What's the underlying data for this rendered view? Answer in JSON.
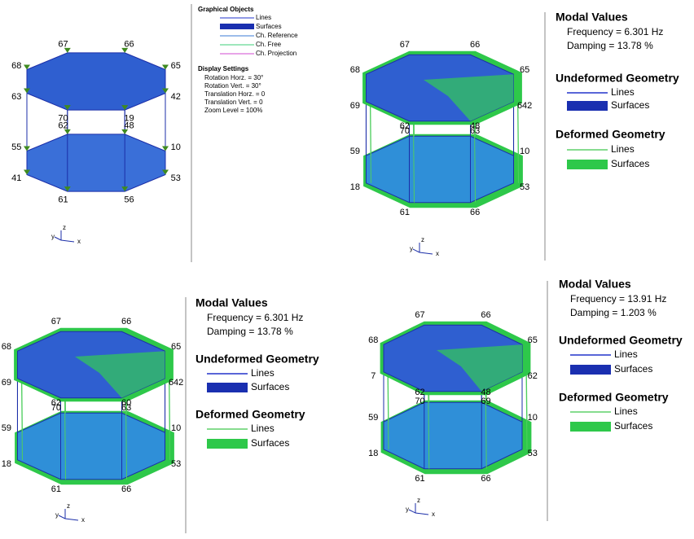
{
  "panels": [
    {
      "legend": {
        "title": "Graphical Objects",
        "items": [
          "Lines",
          "Surfaces",
          "Ch. Reference",
          "Ch. Free",
          "Ch. Projection"
        ]
      },
      "settings": {
        "title": "Display Settings",
        "items": [
          "Rotation Horz. = 30°",
          "Rotation Vert. = 30°",
          "Translation Horz. = 0",
          "Translation Vert. = 0",
          "Zoom Level = 100%"
        ]
      },
      "nodes": {
        "top": [
          "67",
          "66",
          "65",
          "42",
          "19",
          "70",
          "63",
          "68"
        ],
        "bottom": [
          "62",
          "48",
          "10",
          "53",
          "56",
          "61",
          "41",
          "55"
        ]
      },
      "axes": [
        "y",
        "z",
        "x"
      ]
    },
    {
      "modal_values": {
        "title": "Modal Values",
        "frequency": "Frequency = 6.301 Hz",
        "damping": "Damping = 13.78 %"
      },
      "undeformed": {
        "title": "Undeformed Geometry",
        "lines": "Lines",
        "surfaces": "Surfaces"
      },
      "deformed": {
        "title": "Deformed Geometry",
        "lines": "Lines",
        "surfaces": "Surfaces"
      },
      "nodes": {
        "top": [
          "67",
          "66",
          "65",
          "642",
          "63",
          "70",
          "69",
          "68"
        ],
        "bottom": [
          "62",
          "48",
          "10",
          "53",
          "66",
          "61",
          "18",
          "59"
        ]
      },
      "axes": [
        "y",
        "z",
        "x"
      ]
    },
    {
      "modal_values": {
        "title": "Modal Values",
        "frequency": "Frequency = 6.301 Hz",
        "damping": "Damping = 13.78 %"
      },
      "undeformed": {
        "title": "Undeformed Geometry",
        "lines": "Lines",
        "surfaces": "Surfaces"
      },
      "deformed": {
        "title": "Deformed Geometry",
        "lines": "Lines",
        "surfaces": "Surfaces"
      },
      "nodes": {
        "top": [
          "67",
          "66",
          "65",
          "642",
          "63",
          "70",
          "69",
          "68"
        ],
        "bottom": [
          "62",
          "60",
          "10",
          "53",
          "66",
          "61",
          "18",
          "59"
        ]
      },
      "axes": [
        "y",
        "z",
        "x"
      ]
    },
    {
      "modal_values": {
        "title": "Modal Values",
        "frequency": "Frequency = 13.91 Hz",
        "damping": "Damping = 1.203 %"
      },
      "undeformed": {
        "title": "Undeformed Geometry",
        "lines": "Lines",
        "surfaces": "Surfaces"
      },
      "deformed": {
        "title": "Deformed Geometry",
        "lines": "Lines",
        "surfaces": "Surfaces"
      },
      "nodes": {
        "top": [
          "67",
          "66",
          "65",
          "62",
          "69",
          "70",
          "7",
          "68"
        ],
        "bottom": [
          "62",
          "48",
          "10",
          "53",
          "66",
          "61",
          "18",
          "59"
        ]
      },
      "axes": [
        "y",
        "z",
        "x"
      ]
    }
  ]
}
